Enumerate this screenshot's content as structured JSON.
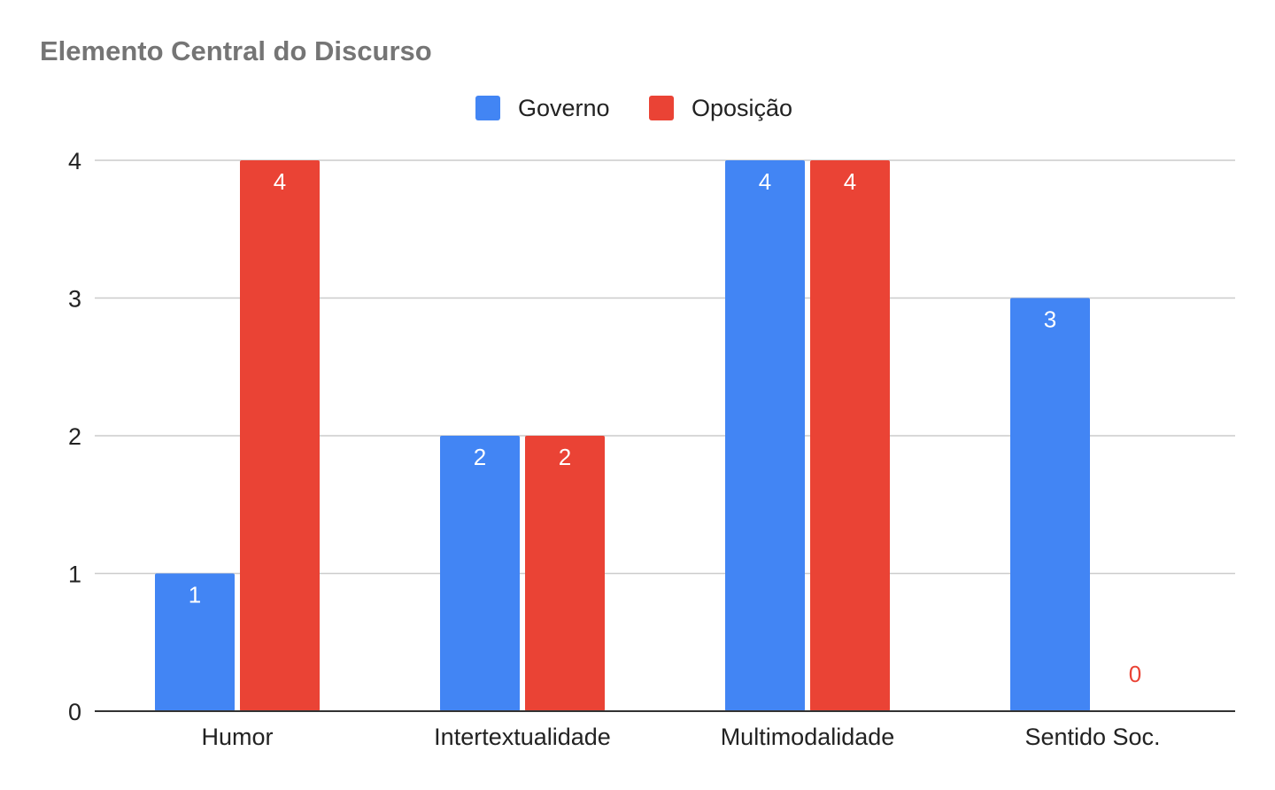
{
  "chart_data": {
    "type": "bar",
    "title": "Elemento Central do Discurso",
    "xlabel": "",
    "ylabel": "",
    "categories": [
      "Humor",
      "Intertextualidade",
      "Multimodalidade",
      "Sentido Soc."
    ],
    "series": [
      {
        "name": "Governo",
        "values": [
          1,
          2,
          4,
          3
        ],
        "color": "#4285F4"
      },
      {
        "name": "Oposição",
        "values": [
          4,
          2,
          4,
          0
        ],
        "color": "#EA4335"
      }
    ],
    "ylim": [
      0,
      4
    ],
    "yticks": [
      "0",
      "1",
      "2",
      "3",
      "4"
    ],
    "grid": true,
    "legend_position": "top-center",
    "data_labels": true
  }
}
